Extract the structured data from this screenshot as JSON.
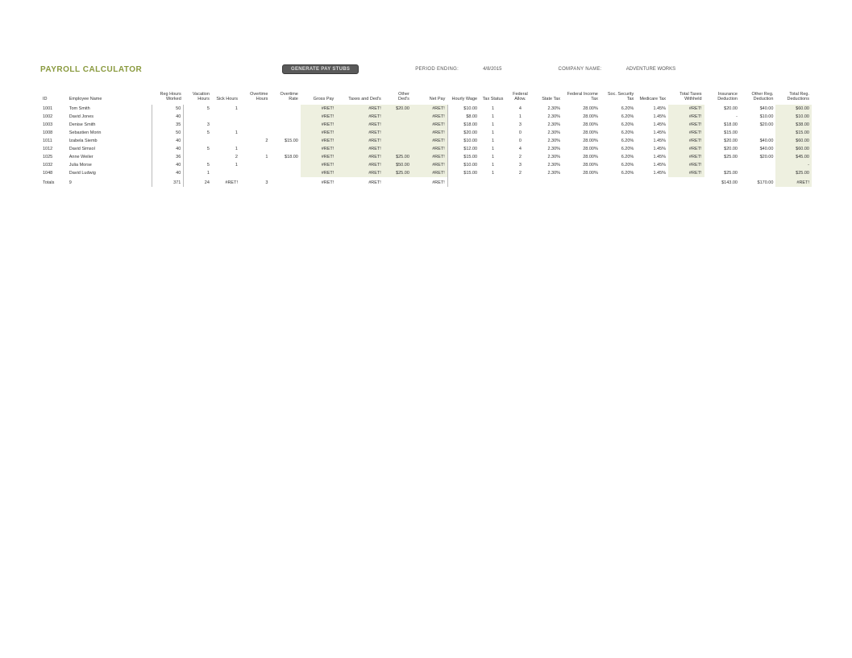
{
  "header": {
    "title": "PAYROLL CALCULATOR",
    "button_label": "GENERATE PAY STUBS",
    "period_label": "PERIOD ENDING:",
    "period_value": "4/8/2015",
    "company_label": "COMPANY NAME:",
    "company_value": "ADVENTURE WORKS"
  },
  "table": {
    "columns": [
      {
        "key": "id",
        "label": "ID",
        "cls": "col-id",
        "align": "left"
      },
      {
        "key": "name",
        "label": "Employee Name",
        "cls": "col-name",
        "align": "left"
      },
      {
        "key": "reg",
        "label": "Reg Hours Worked",
        "cls": "col-reg",
        "align": "num",
        "sep": true
      },
      {
        "key": "vac",
        "label": "Vacation Hours",
        "cls": "col-vac",
        "align": "num",
        "sep": true
      },
      {
        "key": "sick",
        "label": "Sick Hours",
        "cls": "col-sick",
        "align": "num"
      },
      {
        "key": "oth",
        "label": "Overtime Hours",
        "cls": "col-oth",
        "align": "num"
      },
      {
        "key": "otr",
        "label": "Overtime Rate",
        "cls": "col-otr",
        "align": "num"
      },
      {
        "key": "gross",
        "label": "Gross Pay",
        "cls": "col-gross",
        "align": "num",
        "hl": true
      },
      {
        "key": "taxded",
        "label": "Taxes and Ded's",
        "cls": "col-taxded",
        "align": "num",
        "hl": true
      },
      {
        "key": "oded",
        "label": "Other Ded's",
        "cls": "col-oded",
        "align": "num",
        "hl": true
      },
      {
        "key": "net",
        "label": "Net Pay",
        "cls": "col-net",
        "align": "num",
        "hl": true
      },
      {
        "key": "hw",
        "label": "Hourly Wage",
        "cls": "col-hw",
        "align": "num",
        "sep": true
      },
      {
        "key": "ts",
        "label": "Tax Status",
        "cls": "col-ts",
        "align": "ctr"
      },
      {
        "key": "fa",
        "label": "Federal Allow.",
        "cls": "col-fa",
        "align": "ctr"
      },
      {
        "key": "st",
        "label": "State Tax",
        "cls": "col-st",
        "align": "num"
      },
      {
        "key": "fit",
        "label": "Federal Income Tax",
        "cls": "col-fit",
        "align": "num"
      },
      {
        "key": "ss",
        "label": "Soc. Security Tax",
        "cls": "col-ss",
        "align": "num"
      },
      {
        "key": "med",
        "label": "Medicare Tax",
        "cls": "col-med",
        "align": "num"
      },
      {
        "key": "ttw",
        "label": "Total Taxes Withheld",
        "cls": "col-ttw",
        "align": "num",
        "hl": true
      },
      {
        "key": "ins",
        "label": "Insurance Deduction",
        "cls": "col-ins",
        "align": "num"
      },
      {
        "key": "ord",
        "label": "Other Reg. Deduction",
        "cls": "col-ord",
        "align": "num"
      },
      {
        "key": "trd",
        "label": "Total Reg. Deductions",
        "cls": "col-trd",
        "align": "num",
        "hl": true
      }
    ],
    "rows": [
      {
        "id": "1001",
        "name": "Tom Smith",
        "reg": "50",
        "vac": "5",
        "sick": "1",
        "oth": "",
        "otr": "",
        "gross": "#RET!",
        "taxded": "#RET!",
        "oded": "$20.00",
        "net": "#RET!",
        "hw": "$10.00",
        "ts": "1",
        "fa": "4",
        "st": "2.30%",
        "fit": "28.00%",
        "ss": "6.20%",
        "med": "1.45%",
        "ttw": "#RET!",
        "ins": "$20.00",
        "ord": "$40.00",
        "trd": "$60.00"
      },
      {
        "id": "1002",
        "name": "David Jones",
        "reg": "40",
        "vac": "",
        "sick": "",
        "oth": "",
        "otr": "",
        "gross": "#RET!",
        "taxded": "#RET!",
        "oded": "",
        "net": "#RET!",
        "hw": "$8.00",
        "ts": "1",
        "fa": "1",
        "st": "2.30%",
        "fit": "28.00%",
        "ss": "6.20%",
        "med": "1.45%",
        "ttw": "#RET!",
        "ins": "-",
        "ord": "$10.00",
        "trd": "$10.00"
      },
      {
        "id": "1003",
        "name": "Denise Smith",
        "reg": "35",
        "vac": "3",
        "sick": "",
        "oth": "",
        "otr": "",
        "gross": "#RET!",
        "taxded": "#RET!",
        "oded": "",
        "net": "#RET!",
        "hw": "$18.00",
        "ts": "1",
        "fa": "3",
        "st": "2.30%",
        "fit": "28.00%",
        "ss": "6.20%",
        "med": "1.45%",
        "ttw": "#RET!",
        "ins": "$18.00",
        "ord": "$20.00",
        "trd": "$38.00"
      },
      {
        "id": "1008",
        "name": "Sebastien Morin",
        "reg": "50",
        "vac": "5",
        "sick": "1",
        "oth": "",
        "otr": "",
        "gross": "#RET!",
        "taxded": "#RET!",
        "oded": "",
        "net": "#RET!",
        "hw": "$20.00",
        "ts": "1",
        "fa": "0",
        "st": "2.30%",
        "fit": "28.00%",
        "ss": "6.20%",
        "med": "1.45%",
        "ttw": "#RET!",
        "ins": "$15.00",
        "ord": "",
        "trd": "$15.00"
      },
      {
        "id": "1011",
        "name": "Izabela Siemb",
        "reg": "40",
        "vac": "",
        "sick": "",
        "oth": "2",
        "otr": "$15.00",
        "gross": "#RET!",
        "taxded": "#RET!",
        "oded": "",
        "net": "#RET!",
        "hw": "$10.00",
        "ts": "1",
        "fa": "0",
        "st": "2.30%",
        "fit": "28.00%",
        "ss": "6.20%",
        "med": "1.45%",
        "ttw": "#RET!",
        "ins": "$20.00",
        "ord": "$40.00",
        "trd": "$60.00"
      },
      {
        "id": "1012",
        "name": "David Simsol",
        "reg": "40",
        "vac": "5",
        "sick": "1",
        "oth": "",
        "otr": "",
        "gross": "#RET!",
        "taxded": "#RET!",
        "oded": "",
        "net": "#RET!",
        "hw": "$12.00",
        "ts": "1",
        "fa": "4",
        "st": "2.30%",
        "fit": "28.00%",
        "ss": "6.20%",
        "med": "1.45%",
        "ttw": "#RET!",
        "ins": "$20.00",
        "ord": "$40.00",
        "trd": "$60.00"
      },
      {
        "id": "1025",
        "name": "Anne Weiler",
        "reg": "36",
        "vac": "",
        "sick": "2",
        "oth": "1",
        "otr": "$18.00",
        "gross": "#RET!",
        "taxded": "#RET!",
        "oded": "$25.00",
        "net": "#RET!",
        "hw": "$15.00",
        "ts": "1",
        "fa": "2",
        "st": "2.30%",
        "fit": "28.00%",
        "ss": "6.20%",
        "med": "1.45%",
        "ttw": "#RET!",
        "ins": "$25.00",
        "ord": "$20.00",
        "trd": "$45.00"
      },
      {
        "id": "1032",
        "name": "Julia Morse",
        "reg": "40",
        "vac": "5",
        "sick": "1",
        "oth": "",
        "otr": "",
        "gross": "#RET!",
        "taxded": "#RET!",
        "oded": "$50.00",
        "net": "#RET!",
        "hw": "$10.00",
        "ts": "1",
        "fa": "3",
        "st": "2.30%",
        "fit": "28.00%",
        "ss": "6.20%",
        "med": "1.45%",
        "ttw": "#RET!",
        "ins": "",
        "ord": "",
        "trd": "-"
      },
      {
        "id": "1048",
        "name": "David Ludwig",
        "reg": "40",
        "vac": "1",
        "sick": "",
        "oth": "",
        "otr": "",
        "gross": "#RET!",
        "taxded": "#RET!",
        "oded": "$25.00",
        "net": "#RET!",
        "hw": "$15.00",
        "ts": "1",
        "fa": "2",
        "st": "2.30%",
        "fit": "28.00%",
        "ss": "6.20%",
        "med": "1.45%",
        "ttw": "#RET!",
        "ins": "$25.00",
        "ord": "",
        "trd": "$25.00"
      }
    ],
    "totals": {
      "id": "Totals",
      "name": "9",
      "reg": "371",
      "vac": "24",
      "sick": "#RET!",
      "oth": "3",
      "otr": "",
      "gross": "#RET!",
      "taxded": "#RET!",
      "oded": "",
      "net": "#RET!",
      "hw": "",
      "ts": "",
      "fa": "",
      "st": "",
      "fit": "",
      "ss": "",
      "med": "",
      "ttw": "",
      "ins": "$143.00",
      "ord": "$170.00",
      "trd": "#RET!"
    }
  },
  "colors": {
    "title": "#8a9a3f",
    "highlight_bg": "#eef0e0",
    "button_bg": "#5a5a5a"
  }
}
